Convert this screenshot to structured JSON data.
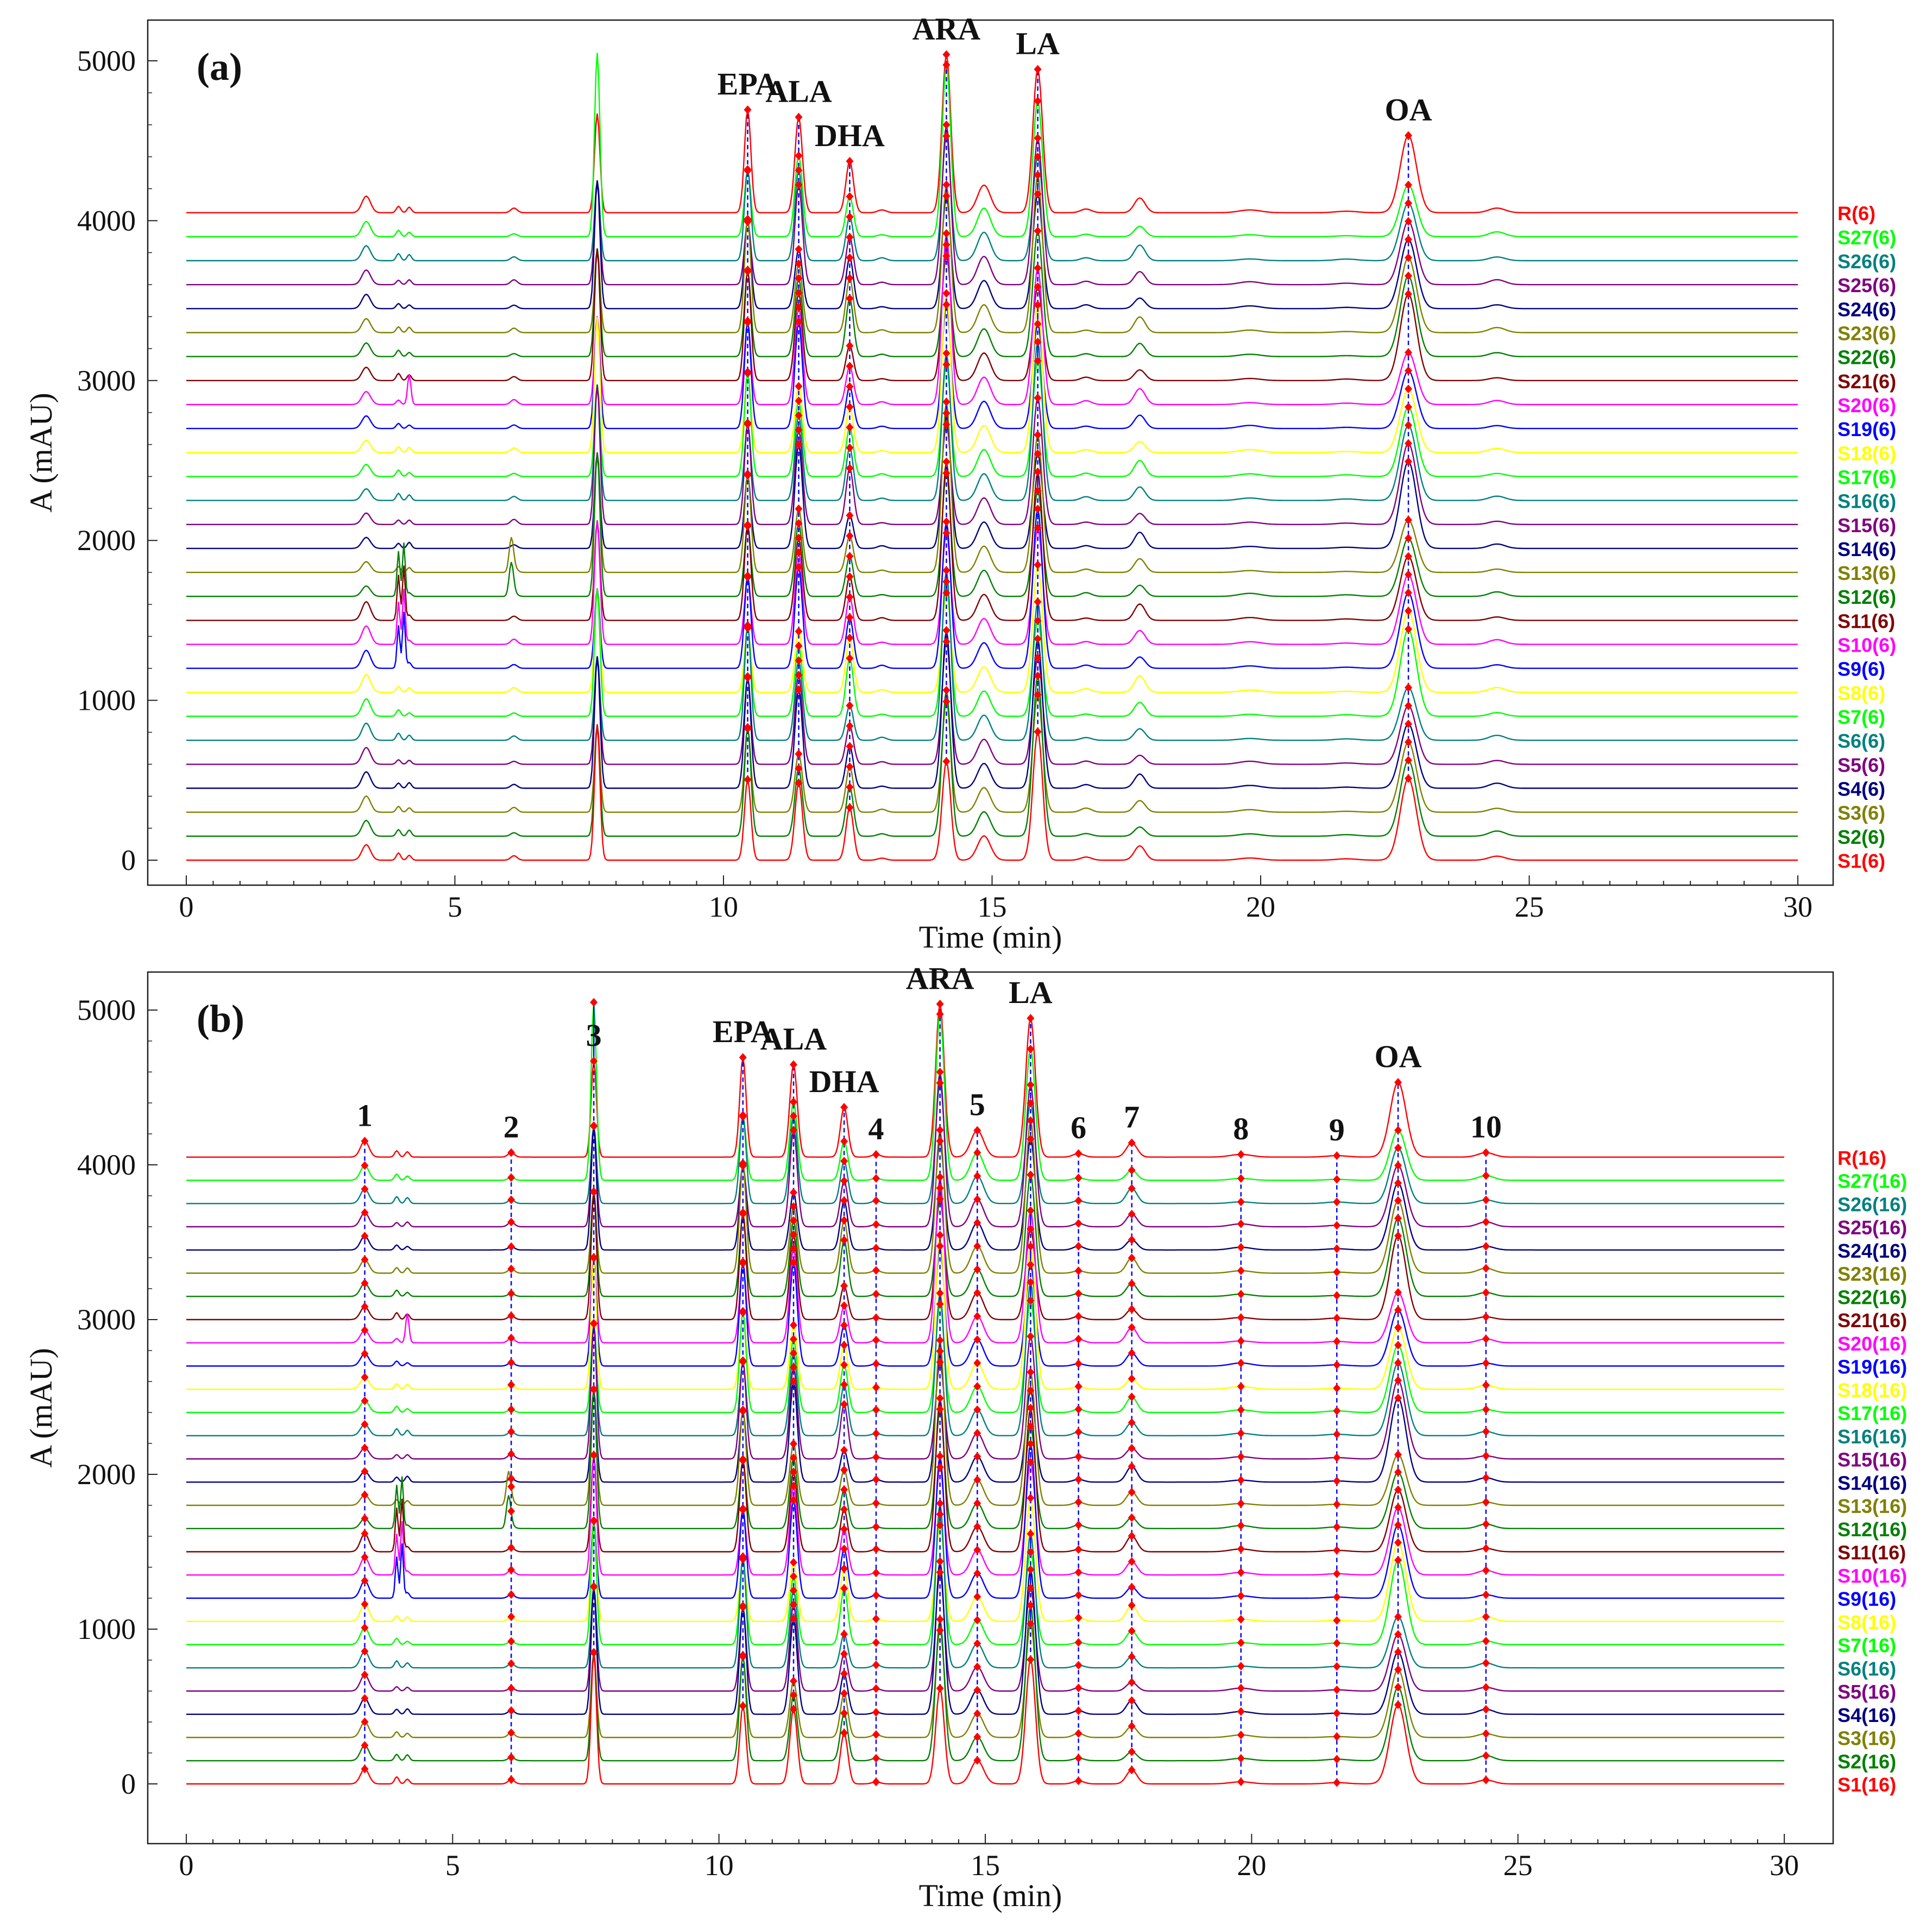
{
  "chart_data": [
    {
      "type": "line",
      "panel_label": "(a)",
      "xlabel": "Time (min)",
      "ylabel": "A (mAU)",
      "xlim": [
        0,
        30
      ],
      "ylim": [
        -150,
        5250
      ],
      "x_ticks": [
        0,
        5,
        10,
        15,
        20,
        25,
        30
      ],
      "y_ticks": [
        0,
        1000,
        2000,
        3000,
        4000,
        5000
      ],
      "baseline_offset_step": 150,
      "series_names": [
        "S1(6)",
        "S2(6)",
        "S3(6)",
        "S4(6)",
        "S5(6)",
        "S6(6)",
        "S7(6)",
        "S8(6)",
        "S9(6)",
        "S10(6)",
        "S11(6)",
        "S12(6)",
        "S13(6)",
        "S14(6)",
        "S15(6)",
        "S16(6)",
        "S17(6)",
        "S18(6)",
        "S19(6)",
        "S20(6)",
        "S21(6)",
        "S22(6)",
        "S23(6)",
        "S24(6)",
        "S25(6)",
        "S26(6)",
        "S27(6)",
        "R(6)"
      ],
      "peaks": [
        {
          "label": "EPA",
          "time": 10.45,
          "apex": 4550
        },
        {
          "label": "ALA",
          "time": 11.4,
          "apex": 4640
        },
        {
          "label": "DHA",
          "time": 12.35,
          "apex": 4330
        },
        {
          "label": "ARA",
          "time": 14.15,
          "apex": 4940
        },
        {
          "label": "LA",
          "time": 15.85,
          "apex": 4880
        },
        {
          "label": "OA",
          "time": 22.75,
          "apex": 4510
        }
      ]
    },
    {
      "type": "line",
      "panel_label": "(b)",
      "xlabel": "Time (min)",
      "ylabel": "A (mAU)",
      "xlim": [
        0,
        30
      ],
      "ylim": [
        -150,
        5250
      ],
      "x_ticks": [
        0,
        5,
        10,
        15,
        20,
        25,
        30
      ],
      "y_ticks": [
        0,
        1000,
        2000,
        3000,
        4000,
        5000
      ],
      "baseline_offset_step": 150,
      "series_names": [
        "S1(16)",
        "S2(16)",
        "S3(16)",
        "S4(16)",
        "S5(16)",
        "S6(16)",
        "S7(16)",
        "S8(16)",
        "S9(16)",
        "S10(16)",
        "S11(16)",
        "S12(16)",
        "S13(16)",
        "S14(16)",
        "S15(16)",
        "S16(16)",
        "S17(16)",
        "S18(16)",
        "S19(16)",
        "S20(16)",
        "S21(16)",
        "S22(16)",
        "S23(16)",
        "S24(16)",
        "S25(16)",
        "S26(16)",
        "S27(16)",
        "R(16)"
      ],
      "peaks": [
        {
          "label": "1",
          "time": 3.35,
          "apex": 4190
        },
        {
          "label": "2",
          "time": 6.1,
          "apex": 4110
        },
        {
          "label": "3",
          "time": 7.65,
          "apex": 5110
        },
        {
          "label": "EPA",
          "time": 10.45,
          "apex": 4550
        },
        {
          "label": "ALA",
          "time": 11.4,
          "apex": 4640
        },
        {
          "label": "DHA",
          "time": 12.35,
          "apex": 4330
        },
        {
          "label": "4",
          "time": 12.95,
          "apex": 4080
        },
        {
          "label": "ARA",
          "time": 14.15,
          "apex": 4940
        },
        {
          "label": "5",
          "time": 14.85,
          "apex": 4200
        },
        {
          "label": "LA",
          "time": 15.85,
          "apex": 4880
        },
        {
          "label": "6",
          "time": 16.75,
          "apex": 4080
        },
        {
          "label": "7",
          "time": 17.75,
          "apex": 4120
        },
        {
          "label": "8",
          "time": 19.8,
          "apex": 4080
        },
        {
          "label": "9",
          "time": 21.6,
          "apex": 4070
        },
        {
          "label": "OA",
          "time": 22.75,
          "apex": 4510
        },
        {
          "label": "10",
          "time": 24.4,
          "apex": 4080
        }
      ]
    }
  ],
  "series_colors": [
    "#ff0000",
    "#008000",
    "#808000",
    "#000080",
    "#800080",
    "#008080",
    "#00ff00",
    "#ffff00",
    "#0000ff",
    "#ff00ff",
    "#800000",
    "#008000",
    "#808000",
    "#000080",
    "#800080",
    "#008080",
    "#00ff00",
    "#ffff00",
    "#0000ff",
    "#ff00ff",
    "#800000",
    "#008000",
    "#808000",
    "#000080",
    "#800080",
    "#008080",
    "#00ff00",
    "#ff0000"
  ],
  "marker_color": "#ff0000",
  "guide_color": "#0000ff"
}
